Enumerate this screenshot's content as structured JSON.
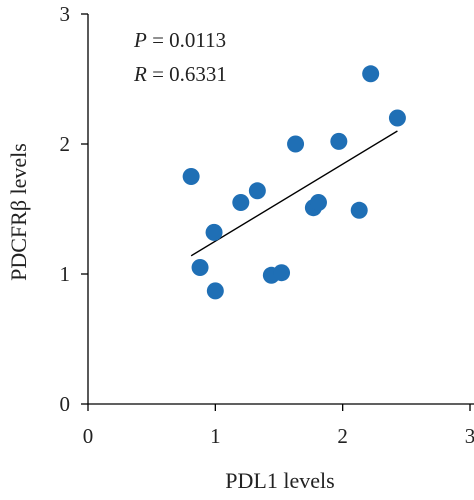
{
  "chart_data": {
    "type": "scatter",
    "title": "",
    "xlabel": "PDL1 levels",
    "ylabel": "PDCFRβ levels",
    "xlim": [
      0,
      3
    ],
    "ylim": [
      0,
      3
    ],
    "x_ticks": [
      "0",
      "1",
      "2",
      "3"
    ],
    "y_ticks": [
      "0",
      "1",
      "2",
      "3"
    ],
    "grid": false,
    "point_color": "#1f6fb5",
    "line_color": "#000000",
    "annotations": {
      "p_var": "P",
      "p_value": " = 0.0113",
      "r_var": "R",
      "r_value": " = 0.6331"
    },
    "points": [
      {
        "x": 0.81,
        "y": 1.75
      },
      {
        "x": 0.88,
        "y": 1.05
      },
      {
        "x": 0.99,
        "y": 1.32
      },
      {
        "x": 1.0,
        "y": 0.87
      },
      {
        "x": 1.2,
        "y": 1.55
      },
      {
        "x": 1.33,
        "y": 1.64
      },
      {
        "x": 1.44,
        "y": 0.99
      },
      {
        "x": 1.52,
        "y": 1.01
      },
      {
        "x": 1.63,
        "y": 2.0
      },
      {
        "x": 1.77,
        "y": 1.51
      },
      {
        "x": 1.81,
        "y": 1.55
      },
      {
        "x": 1.97,
        "y": 2.02
      },
      {
        "x": 2.13,
        "y": 1.49
      },
      {
        "x": 2.22,
        "y": 2.54
      },
      {
        "x": 2.43,
        "y": 2.2
      }
    ],
    "trendline": {
      "x": [
        0.81,
        2.43
      ],
      "y": [
        1.14,
        2.1
      ]
    }
  }
}
